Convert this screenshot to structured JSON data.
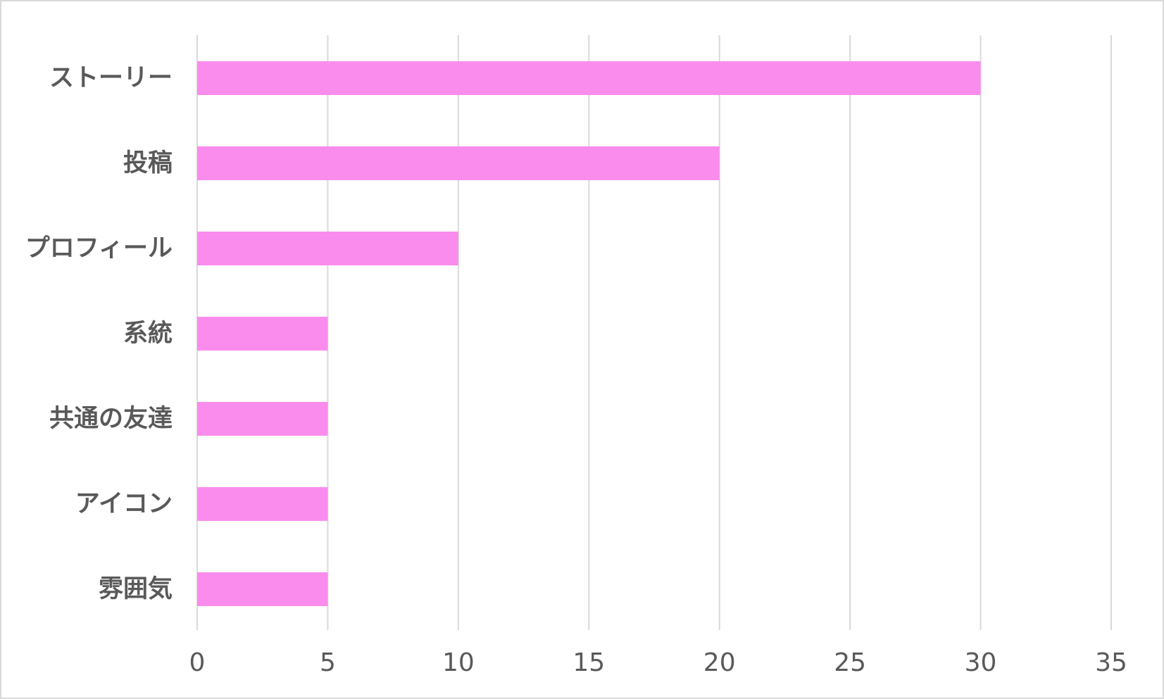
{
  "chart_data": {
    "type": "bar",
    "orientation": "horizontal",
    "categories": [
      "ストーリー",
      "投稿",
      "プロフィール",
      "系統",
      "共通の友達",
      "アイコン",
      "雰囲気"
    ],
    "values": [
      30,
      20,
      10,
      5,
      5,
      5,
      5
    ],
    "title": "",
    "xlabel": "",
    "ylabel": "",
    "xlim": [
      0,
      35
    ],
    "xticks": [
      0,
      5,
      10,
      15,
      20,
      25,
      30,
      35
    ],
    "grid": "vertical",
    "legend": "none",
    "colors": {
      "bar": "#fa8cee",
      "grid": "#d9d9d9",
      "text": "#595959",
      "border": "#d9d9d9"
    }
  }
}
